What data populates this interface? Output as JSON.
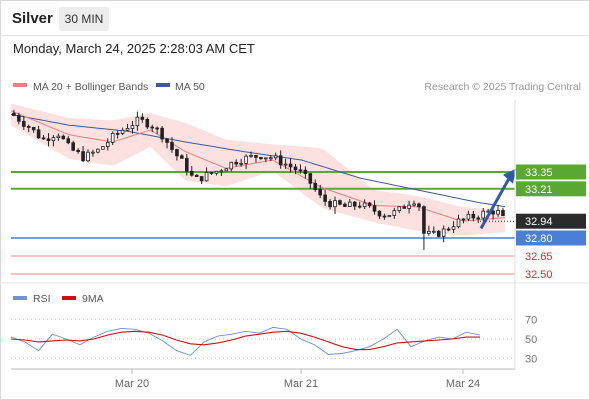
{
  "header": {
    "symbol": "Silver",
    "timeframe": "30 MIN",
    "datetime": "Monday, March 24, 2025 2:28:03 AM CET"
  },
  "legend": {
    "ma20_label": "MA 20 + Bollinger Bands",
    "ma20_color": "#f08080",
    "ma50_label": "MA 50",
    "ma50_color": "#3d5a99",
    "copyright": "Research © 2025 Trading Central"
  },
  "rsi_legend": {
    "rsi_label": "RSI",
    "rsi_color": "#6f8fd6",
    "ma9_label": "9MA",
    "ma9_color": "#d01010"
  },
  "colors": {
    "up_candle": "#ffffff",
    "down_candle": "#222222",
    "resistance": "#5aa832",
    "support": "#4a7fd6",
    "target_line": "#ec8a8a",
    "bollinger_fill": "#fde0e0",
    "arrow": "#2e5aa8"
  },
  "chart_data": [
    {
      "type": "candlestick",
      "title": "Silver",
      "timeframe": "30 MIN",
      "x_ticks": [
        "Mar 20",
        "Mar 21",
        "Mar 24"
      ],
      "levels": [
        {
          "label": "33.35",
          "value": 33.35,
          "kind": "resistance"
        },
        {
          "label": "33.21",
          "value": 33.21,
          "kind": "resistance"
        },
        {
          "label": "32.94",
          "value": 32.94,
          "kind": "last-price"
        },
        {
          "label": "32.80",
          "value": 32.8,
          "kind": "pivot"
        },
        {
          "label": "32.65",
          "value": 32.65,
          "kind": "target"
        },
        {
          "label": "32.50",
          "value": 32.5,
          "kind": "target"
        }
      ],
      "ylim": [
        32.45,
        33.95
      ],
      "close_path": [
        [
          0,
          33.84
        ],
        [
          6,
          33.73
        ],
        [
          11,
          33.62
        ],
        [
          16,
          33.68
        ],
        [
          20,
          33.55
        ],
        [
          25,
          33.47
        ],
        [
          30,
          33.53
        ],
        [
          35,
          33.64
        ],
        [
          40,
          33.73
        ],
        [
          44,
          33.78
        ],
        [
          48,
          33.75
        ],
        [
          52,
          33.66
        ],
        [
          56,
          33.52
        ],
        [
          60,
          33.4
        ],
        [
          63,
          33.28
        ],
        [
          67,
          33.32
        ],
        [
          71,
          33.36
        ],
        [
          74,
          33.4
        ],
        [
          78,
          33.45
        ],
        [
          82,
          33.47
        ],
        [
          86,
          33.49
        ],
        [
          90,
          33.47
        ],
        [
          95,
          33.41
        ],
        [
          99,
          33.36
        ],
        [
          103,
          33.26
        ],
        [
          107,
          33.12
        ],
        [
          111,
          33.08
        ],
        [
          115,
          33.06
        ],
        [
          120,
          33.08
        ],
        [
          125,
          33.03
        ],
        [
          129,
          32.99
        ],
        [
          133,
          33.02
        ],
        [
          137,
          33.1
        ],
        [
          140,
          33.13
        ],
        [
          142,
          32.84
        ],
        [
          145,
          32.82
        ],
        [
          149,
          32.86
        ],
        [
          153,
          32.93
        ],
        [
          158,
          32.97
        ],
        [
          163,
          33.01
        ],
        [
          167,
          33.03
        ],
        [
          170,
          32.94
        ]
      ],
      "ma20_path": [
        [
          0,
          33.86
        ],
        [
          20,
          33.66
        ],
        [
          35,
          33.6
        ],
        [
          48,
          33.7
        ],
        [
          60,
          33.52
        ],
        [
          74,
          33.38
        ],
        [
          90,
          33.45
        ],
        [
          107,
          33.22
        ],
        [
          125,
          33.07
        ],
        [
          140,
          33.06
        ],
        [
          155,
          32.94
        ],
        [
          170,
          32.97
        ]
      ],
      "ma50_path": [
        [
          0,
          33.83
        ],
        [
          20,
          33.74
        ],
        [
          40,
          33.69
        ],
        [
          60,
          33.6
        ],
        [
          80,
          33.52
        ],
        [
          100,
          33.45
        ],
        [
          120,
          33.3
        ],
        [
          140,
          33.2
        ],
        [
          160,
          33.1
        ],
        [
          170,
          33.06
        ]
      ],
      "bollinger_upper": [
        [
          0,
          33.92
        ],
        [
          20,
          33.8
        ],
        [
          35,
          33.78
        ],
        [
          48,
          33.84
        ],
        [
          60,
          33.76
        ],
        [
          74,
          33.62
        ],
        [
          90,
          33.58
        ],
        [
          107,
          33.55
        ],
        [
          125,
          33.2
        ],
        [
          140,
          33.15
        ],
        [
          155,
          33.06
        ],
        [
          170,
          33.03
        ]
      ],
      "bollinger_lower": [
        [
          0,
          33.74
        ],
        [
          20,
          33.46
        ],
        [
          35,
          33.4
        ],
        [
          48,
          33.56
        ],
        [
          60,
          33.28
        ],
        [
          74,
          33.23
        ],
        [
          90,
          33.36
        ],
        [
          107,
          33.05
        ],
        [
          125,
          32.93
        ],
        [
          140,
          32.86
        ],
        [
          155,
          32.82
        ],
        [
          170,
          32.85
        ]
      ]
    },
    {
      "type": "line",
      "title": "RSI",
      "series": [
        {
          "name": "RSI",
          "values": [
            52,
            47,
            38,
            55,
            50,
            44,
            52,
            58,
            61,
            60,
            56,
            48,
            38,
            33,
            47,
            53,
            55,
            58,
            56,
            62,
            60,
            50,
            44,
            34,
            35,
            38,
            42,
            50,
            60,
            42,
            48,
            52,
            50,
            57,
            54
          ]
        },
        {
          "name": "9MA",
          "values": [
            50,
            49,
            47,
            48,
            49,
            48,
            50,
            54,
            57,
            58,
            57,
            54,
            49,
            45,
            44,
            46,
            49,
            53,
            55,
            57,
            58,
            56,
            52,
            47,
            42,
            39,
            39,
            42,
            46,
            47,
            48,
            49,
            50,
            52,
            52
          ]
        }
      ],
      "y_ticks": [
        70,
        50,
        30
      ],
      "ylim": [
        20,
        80
      ]
    }
  ]
}
